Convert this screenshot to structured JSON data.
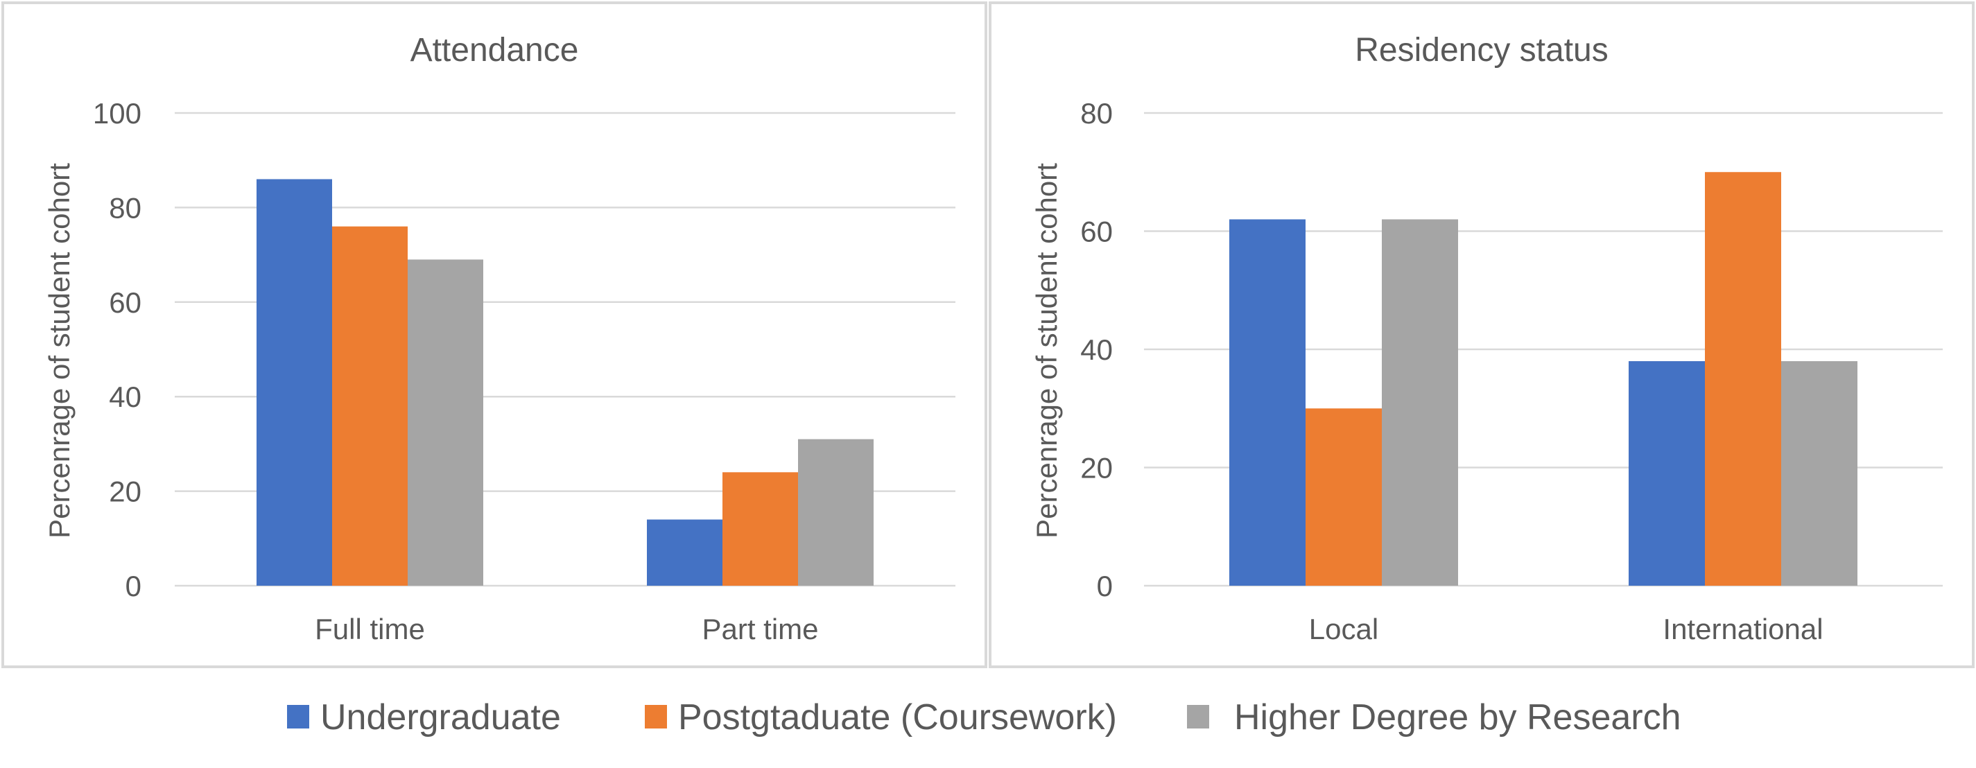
{
  "chart_data": [
    {
      "type": "bar",
      "title": "Attendance",
      "xlabel": "",
      "ylabel": "Percenrage of student cohort",
      "categories": [
        "Full time",
        "Part time"
      ],
      "yticks": [
        "0",
        "20",
        "40",
        "60",
        "80",
        "100"
      ],
      "ylim": [
        0,
        100
      ],
      "grid": true,
      "series": [
        {
          "name": "Undergraduate",
          "color": "#4472C4",
          "values": [
            86,
            14
          ]
        },
        {
          "name": "Postgtaduate (Coursework)",
          "color": "#ED7D31",
          "values": [
            76,
            24
          ]
        },
        {
          "name": "Higher Degree by Research",
          "color": "#A5A5A5",
          "values": [
            69,
            31
          ]
        }
      ]
    },
    {
      "type": "bar",
      "title": "Residency status",
      "xlabel": "",
      "ylabel": "Percenrage of student cohort",
      "categories": [
        "Local",
        "International"
      ],
      "yticks": [
        "0",
        "20",
        "40",
        "60",
        "80"
      ],
      "ylim": [
        0,
        80
      ],
      "grid": true,
      "series": [
        {
          "name": "Undergraduate",
          "color": "#4472C4",
          "values": [
            62,
            38
          ]
        },
        {
          "name": "Postgtaduate (Coursework)",
          "color": "#ED7D31",
          "values": [
            30,
            70
          ]
        },
        {
          "name": "Higher Degree by Research",
          "color": "#A5A5A5",
          "values": [
            62,
            38
          ]
        }
      ]
    }
  ],
  "legend": {
    "position": "bottom",
    "items": [
      {
        "label": "Undergraduate",
        "color": "#4472C4"
      },
      {
        "label": "Postgtaduate (Coursework)",
        "color": "#ED7D31"
      },
      {
        "label": "Higher Degree by Research",
        "color": "#A5A5A5"
      }
    ]
  }
}
